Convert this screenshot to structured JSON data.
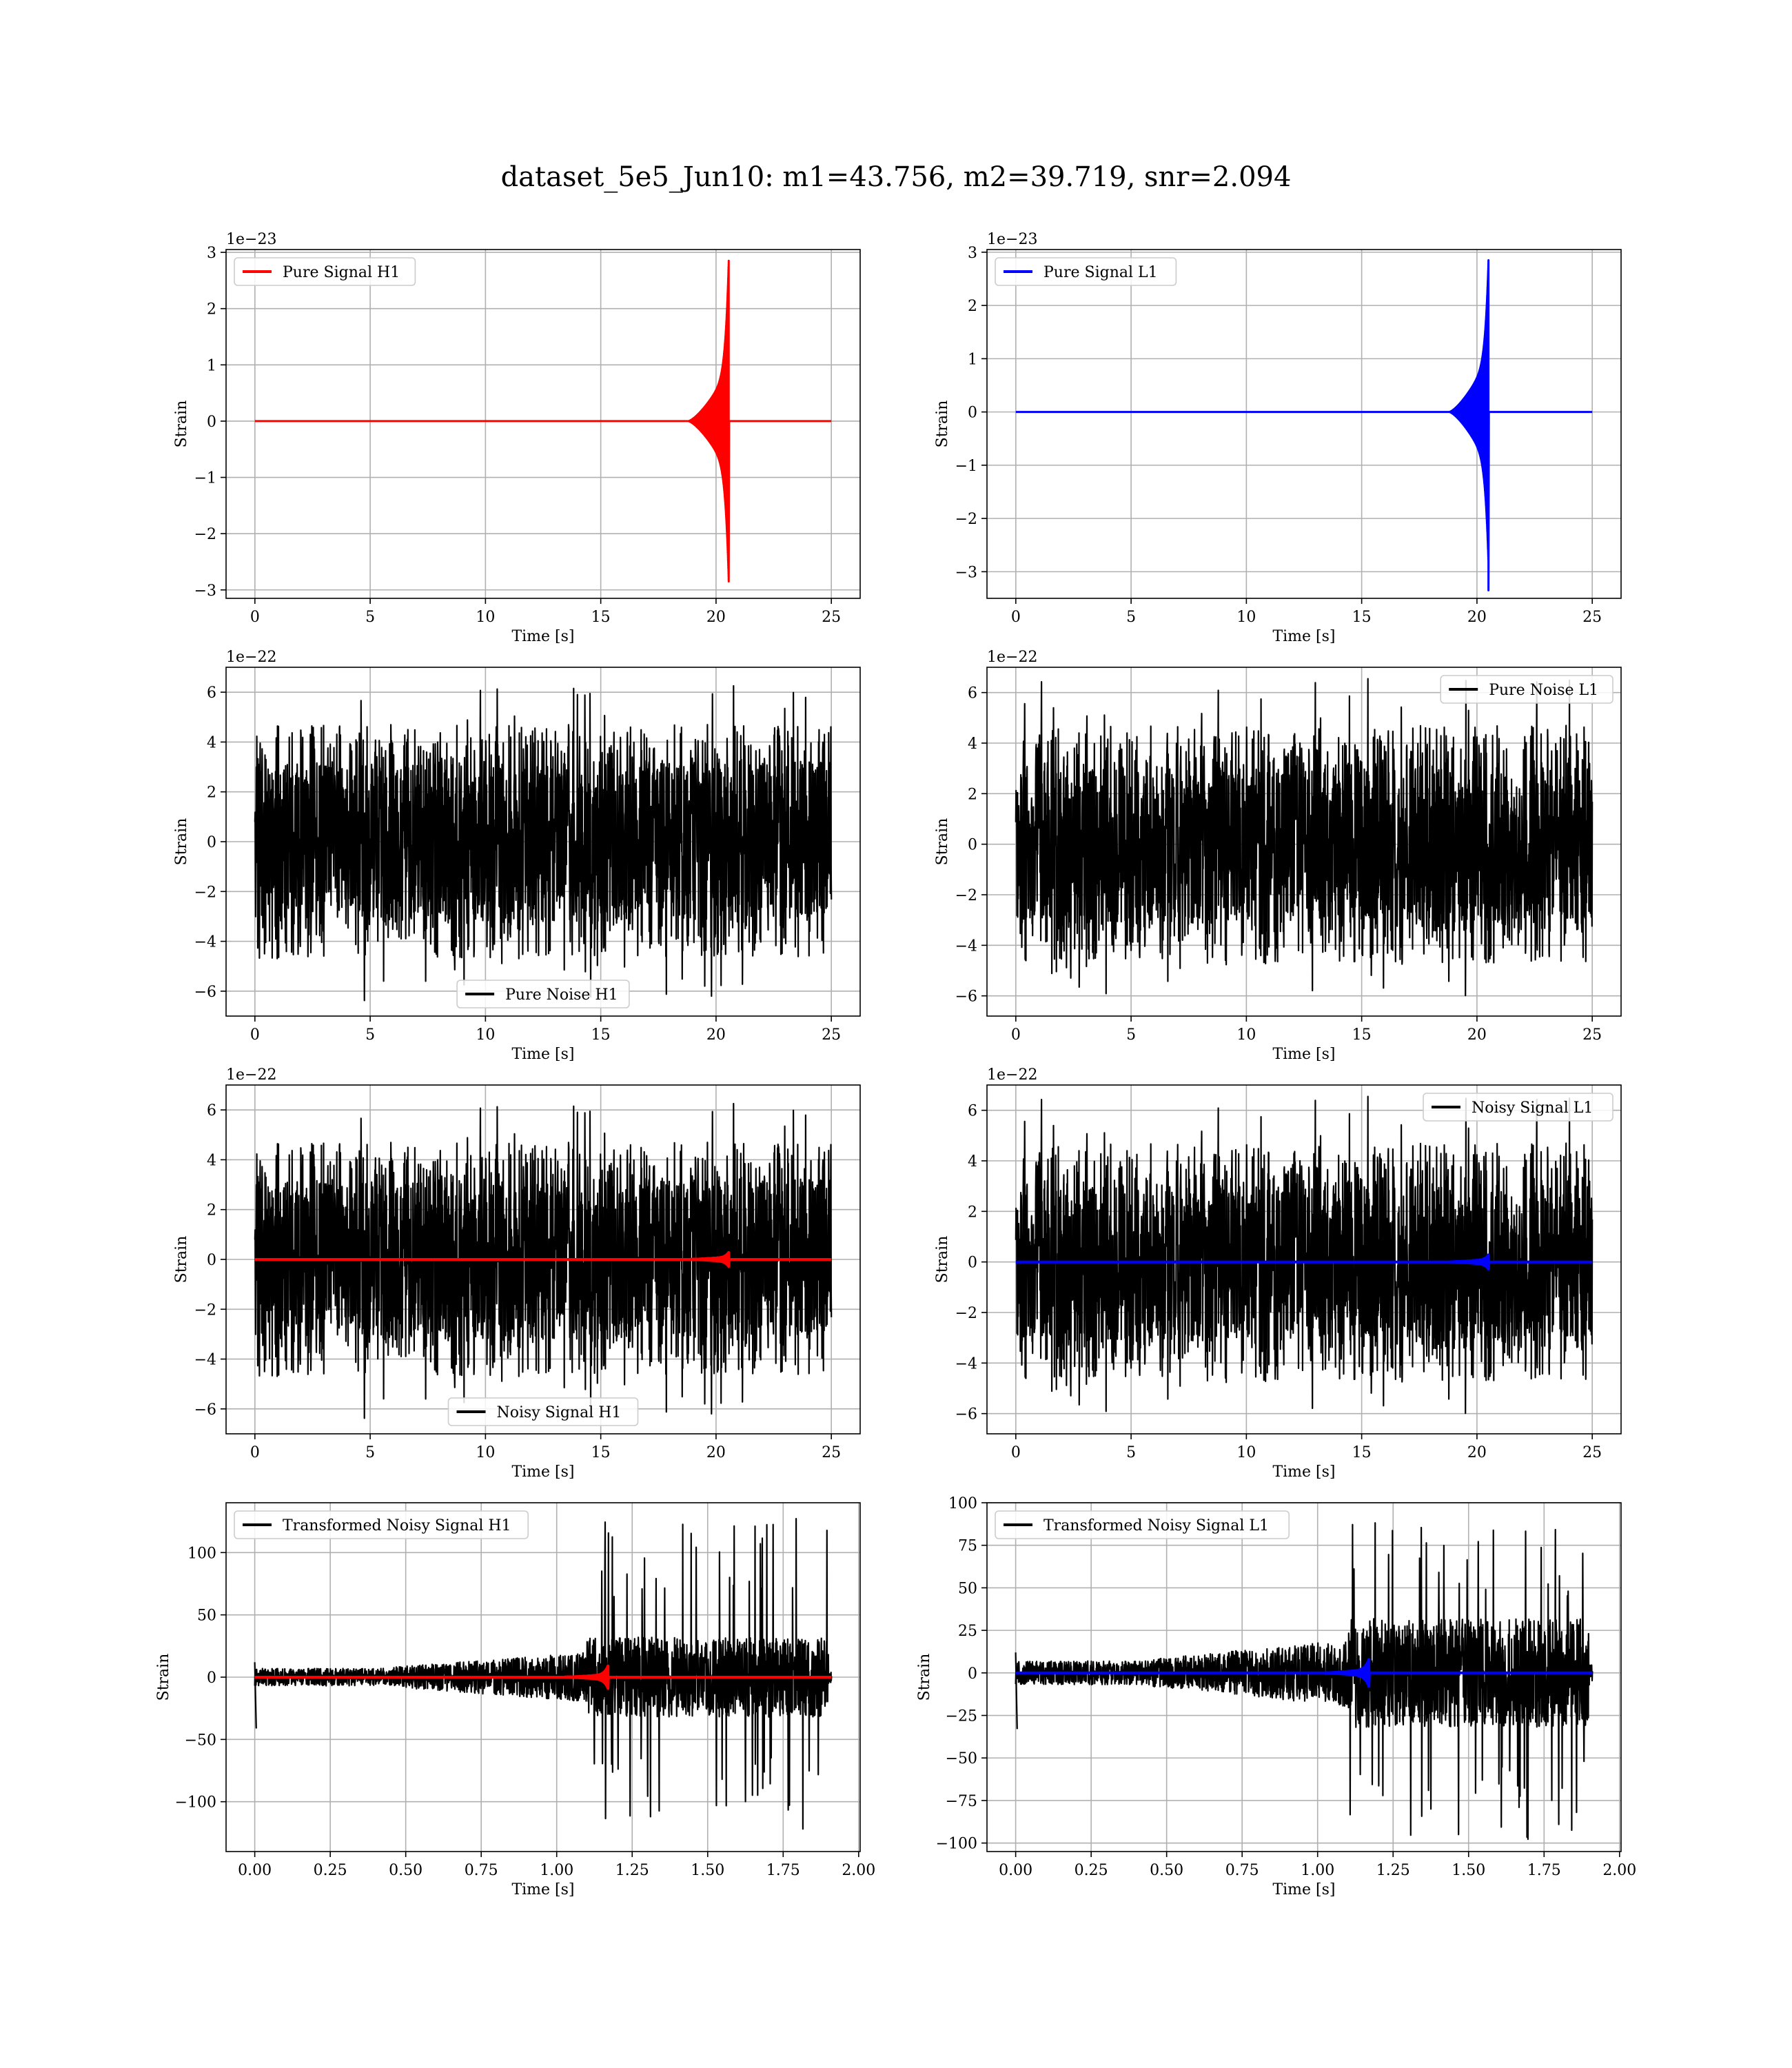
{
  "figure": {
    "title": "dataset_5e5_Jun10: m1=43.756, m2=39.719, snr=2.094"
  },
  "chart_data": [
    {
      "id": "pure-signal-h1",
      "type": "line",
      "xlabel": "Time [s]",
      "ylabel": "Strain",
      "offset_text": "1e−23",
      "xlim": [
        -1.25,
        26.25
      ],
      "ylim": [
        -3.15,
        3.05
      ],
      "xticks": [
        {
          "v": 0,
          "label": "0"
        },
        {
          "v": 5,
          "label": "5"
        },
        {
          "v": 10,
          "label": "10"
        },
        {
          "v": 15,
          "label": "15"
        },
        {
          "v": 20,
          "label": "20"
        },
        {
          "v": 25,
          "label": "25"
        }
      ],
      "yticks": [
        {
          "v": -3,
          "label": "−3"
        },
        {
          "v": -2,
          "label": "−2"
        },
        {
          "v": -1,
          "label": "−1"
        },
        {
          "v": 0,
          "label": "0"
        },
        {
          "v": 1,
          "label": "1"
        },
        {
          "v": 2,
          "label": "2"
        },
        {
          "v": 3,
          "label": "3"
        }
      ],
      "grid": true,
      "legend": {
        "position": "upper-left"
      },
      "series": [
        {
          "name": "Pure Signal H1",
          "color": "#ff0000",
          "kind": "chirp",
          "t0": 18.8,
          "tc": 20.55,
          "tEnd": 25,
          "peak": 2.85,
          "baseAmp": 0.9
        }
      ]
    },
    {
      "id": "pure-signal-l1",
      "type": "line",
      "xlabel": "Time [s]",
      "ylabel": "Strain",
      "offset_text": "1e−23",
      "xlim": [
        -1.25,
        26.25
      ],
      "ylim": [
        -3.5,
        3.05
      ],
      "xticks": [
        {
          "v": 0,
          "label": "0"
        },
        {
          "v": 5,
          "label": "5"
        },
        {
          "v": 10,
          "label": "10"
        },
        {
          "v": 15,
          "label": "15"
        },
        {
          "v": 20,
          "label": "20"
        },
        {
          "v": 25,
          "label": "25"
        }
      ],
      "yticks": [
        {
          "v": -3,
          "label": "−3"
        },
        {
          "v": -2,
          "label": "−2"
        },
        {
          "v": -1,
          "label": "−1"
        },
        {
          "v": 0,
          "label": "0"
        },
        {
          "v": 1,
          "label": "1"
        },
        {
          "v": 2,
          "label": "2"
        },
        {
          "v": 3,
          "label": "3"
        }
      ],
      "grid": true,
      "legend": {
        "position": "upper-left"
      },
      "series": [
        {
          "name": "Pure Signal L1",
          "color": "#0000ff",
          "kind": "chirp",
          "t0": 18.8,
          "tc": 20.5,
          "tEnd": 25,
          "peak": 2.85,
          "minPeak": -3.35,
          "baseAmp": 1.0
        }
      ]
    },
    {
      "id": "pure-noise-h1",
      "type": "line",
      "xlabel": "Time [s]",
      "ylabel": "Strain",
      "offset_text": "1e−22",
      "xlim": [
        -1.25,
        26.25
      ],
      "ylim": [
        -7.0,
        7.0
      ],
      "xticks": [
        {
          "v": 0,
          "label": "0"
        },
        {
          "v": 5,
          "label": "5"
        },
        {
          "v": 10,
          "label": "10"
        },
        {
          "v": 15,
          "label": "15"
        },
        {
          "v": 20,
          "label": "20"
        },
        {
          "v": 25,
          "label": "25"
        }
      ],
      "yticks": [
        {
          "v": -6,
          "label": "−6"
        },
        {
          "v": -4,
          "label": "−4"
        },
        {
          "v": -2,
          "label": "−2"
        },
        {
          "v": 0,
          "label": "0"
        },
        {
          "v": 2,
          "label": "2"
        },
        {
          "v": 4,
          "label": "4"
        },
        {
          "v": 6,
          "label": "6"
        }
      ],
      "grid": true,
      "legend": {
        "position": "lower-center"
      },
      "series": [
        {
          "name": "Pure Noise H1",
          "color": "#000000",
          "kind": "noise",
          "xEnd": 25,
          "core": 3.2,
          "spikeMax": 6.4,
          "spikeMin": -6.4
        }
      ]
    },
    {
      "id": "pure-noise-l1",
      "type": "line",
      "xlabel": "Time [s]",
      "ylabel": "Strain",
      "offset_text": "1e−22",
      "xlim": [
        -1.25,
        26.25
      ],
      "ylim": [
        -6.8,
        7.0
      ],
      "xticks": [
        {
          "v": 0,
          "label": "0"
        },
        {
          "v": 5,
          "label": "5"
        },
        {
          "v": 10,
          "label": "10"
        },
        {
          "v": 15,
          "label": "15"
        },
        {
          "v": 20,
          "label": "20"
        },
        {
          "v": 25,
          "label": "25"
        }
      ],
      "yticks": [
        {
          "v": -6,
          "label": "−6"
        },
        {
          "v": -4,
          "label": "−4"
        },
        {
          "v": -2,
          "label": "−2"
        },
        {
          "v": 0,
          "label": "0"
        },
        {
          "v": 2,
          "label": "2"
        },
        {
          "v": 4,
          "label": "4"
        },
        {
          "v": 6,
          "label": "6"
        }
      ],
      "grid": true,
      "legend": {
        "position": "upper-right"
      },
      "series": [
        {
          "name": "Pure Noise L1",
          "color": "#000000",
          "kind": "noise",
          "xEnd": 25,
          "core": 3.2,
          "spikeMax": 6.6,
          "spikeMin": -6.1
        }
      ]
    },
    {
      "id": "noisy-signal-h1",
      "type": "line",
      "xlabel": "Time [s]",
      "ylabel": "Strain",
      "offset_text": "1e−22",
      "xlim": [
        -1.25,
        26.25
      ],
      "ylim": [
        -7.0,
        7.0
      ],
      "xticks": [
        {
          "v": 0,
          "label": "0"
        },
        {
          "v": 5,
          "label": "5"
        },
        {
          "v": 10,
          "label": "10"
        },
        {
          "v": 15,
          "label": "15"
        },
        {
          "v": 20,
          "label": "20"
        },
        {
          "v": 25,
          "label": "25"
        }
      ],
      "yticks": [
        {
          "v": -6,
          "label": "−6"
        },
        {
          "v": -4,
          "label": "−4"
        },
        {
          "v": -2,
          "label": "−2"
        },
        {
          "v": 0,
          "label": "0"
        },
        {
          "v": 2,
          "label": "2"
        },
        {
          "v": 4,
          "label": "4"
        },
        {
          "v": 6,
          "label": "6"
        }
      ],
      "grid": true,
      "legend": {
        "position": "lower-center"
      },
      "series": [
        {
          "name": "Noisy Signal H1",
          "color": "#000000",
          "kind": "noise",
          "xEnd": 25,
          "core": 3.2,
          "spikeMax": 6.4,
          "spikeMin": -6.4
        },
        {
          "name": "",
          "color": "#ff0000",
          "kind": "chirp",
          "t0": 18.8,
          "tc": 20.55,
          "tEnd": 25,
          "peak": 0.28,
          "baseAmp": 0.09,
          "overlay": true
        }
      ]
    },
    {
      "id": "noisy-signal-l1",
      "type": "line",
      "xlabel": "Time [s]",
      "ylabel": "Strain",
      "offset_text": "1e−22",
      "xlim": [
        -1.25,
        26.25
      ],
      "ylim": [
        -6.8,
        7.0
      ],
      "xticks": [
        {
          "v": 0,
          "label": "0"
        },
        {
          "v": 5,
          "label": "5"
        },
        {
          "v": 10,
          "label": "10"
        },
        {
          "v": 15,
          "label": "15"
        },
        {
          "v": 20,
          "label": "20"
        },
        {
          "v": 25,
          "label": "25"
        }
      ],
      "yticks": [
        {
          "v": -6,
          "label": "−6"
        },
        {
          "v": -4,
          "label": "−4"
        },
        {
          "v": -2,
          "label": "−2"
        },
        {
          "v": 0,
          "label": "0"
        },
        {
          "v": 2,
          "label": "2"
        },
        {
          "v": 4,
          "label": "4"
        },
        {
          "v": 6,
          "label": "6"
        }
      ],
      "grid": true,
      "legend": {
        "position": "upper-right"
      },
      "series": [
        {
          "name": "Noisy Signal L1",
          "color": "#000000",
          "kind": "noise",
          "xEnd": 25,
          "core": 3.2,
          "spikeMax": 6.6,
          "spikeMin": -6.1
        },
        {
          "name": "",
          "color": "#0000ff",
          "kind": "chirp",
          "t0": 18.8,
          "tc": 20.5,
          "tEnd": 25,
          "peak": 0.28,
          "baseAmp": 0.1,
          "overlay": true
        }
      ]
    },
    {
      "id": "transformed-noisy-signal-h1",
      "type": "line",
      "xlabel": "Time [s]",
      "ylabel": "Strain",
      "offset_text": "",
      "xlim": [
        -0.095,
        2.005
      ],
      "ylim": [
        -140,
        140
      ],
      "xticks": [
        {
          "v": 0,
          "label": "0.00"
        },
        {
          "v": 0.25,
          "label": "0.25"
        },
        {
          "v": 0.5,
          "label": "0.50"
        },
        {
          "v": 0.75,
          "label": "0.75"
        },
        {
          "v": 1.0,
          "label": "1.00"
        },
        {
          "v": 1.25,
          "label": "1.25"
        },
        {
          "v": 1.5,
          "label": "1.50"
        },
        {
          "v": 1.75,
          "label": "1.75"
        },
        {
          "v": 2.0,
          "label": "2.00"
        }
      ],
      "yticks": [
        {
          "v": -100,
          "label": "−100"
        },
        {
          "v": -50,
          "label": "−50"
        },
        {
          "v": 0,
          "label": "0"
        },
        {
          "v": 50,
          "label": "50"
        },
        {
          "v": 100,
          "label": "100"
        }
      ],
      "grid": true,
      "legend": {
        "position": "upper-left"
      },
      "series": [
        {
          "name": "Transformed Noisy Signal H1",
          "color": "#000000",
          "kind": "whitened",
          "xEnd": 1.91,
          "tJump": 1.1,
          "spikeMax": 128,
          "spikeMin": -125
        },
        {
          "name": "",
          "color": "#ff0000",
          "kind": "chirp",
          "t0": 1.02,
          "tc": 1.17,
          "tEnd": 1.91,
          "peak": 9,
          "baseAmp": 2,
          "overlay": true
        }
      ]
    },
    {
      "id": "transformed-noisy-signal-l1",
      "type": "line",
      "xlabel": "Time [s]",
      "ylabel": "Strain",
      "offset_text": "",
      "xlim": [
        -0.095,
        2.005
      ],
      "ylim": [
        -105,
        100
      ],
      "xticks": [
        {
          "v": 0,
          "label": "0.00"
        },
        {
          "v": 0.25,
          "label": "0.25"
        },
        {
          "v": 0.5,
          "label": "0.50"
        },
        {
          "v": 0.75,
          "label": "0.75"
        },
        {
          "v": 1.0,
          "label": "1.00"
        },
        {
          "v": 1.25,
          "label": "1.25"
        },
        {
          "v": 1.5,
          "label": "1.50"
        },
        {
          "v": 1.75,
          "label": "1.75"
        },
        {
          "v": 2.0,
          "label": "2.00"
        }
      ],
      "yticks": [
        {
          "v": -100,
          "label": "−100"
        },
        {
          "v": -75,
          "label": "−75"
        },
        {
          "v": -50,
          "label": "−50"
        },
        {
          "v": -25,
          "label": "−25"
        },
        {
          "v": 0,
          "label": "0"
        },
        {
          "v": 25,
          "label": "25"
        },
        {
          "v": 50,
          "label": "50"
        },
        {
          "v": 75,
          "label": "75"
        },
        {
          "v": 100,
          "label": "100"
        }
      ],
      "grid": true,
      "legend": {
        "position": "upper-left"
      },
      "series": [
        {
          "name": "Transformed Noisy Signal L1",
          "color": "#000000",
          "kind": "whitened",
          "xEnd": 1.91,
          "tJump": 1.1,
          "spikeMax": 90,
          "spikeMin": -100
        },
        {
          "name": "",
          "color": "#0000ff",
          "kind": "chirp",
          "t0": 1.02,
          "tc": 1.17,
          "tEnd": 1.91,
          "peak": 8,
          "baseAmp": 2,
          "overlay": true
        }
      ]
    }
  ]
}
